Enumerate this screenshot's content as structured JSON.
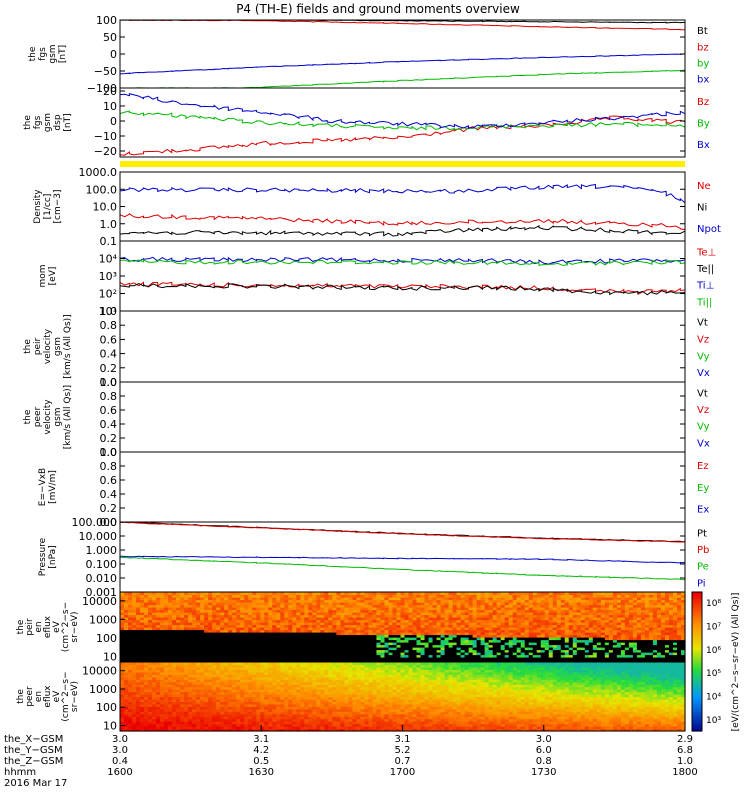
{
  "title": "P4 (TH-E) fields and ground moments overview",
  "date_label": "2016 Mar 17",
  "panels": [
    {
      "id": "fgs_gsm",
      "ylabel": [
        "the",
        "fgs",
        "gsm",
        "[nT]"
      ],
      "ticks": [
        "100",
        "50",
        "0",
        "−50",
        "−100"
      ],
      "tick_values": [
        100,
        50,
        0,
        -50,
        -100
      ],
      "ylim": [
        -100,
        100
      ],
      "legend": [
        {
          "text": "Bt",
          "color": "#000000"
        },
        {
          "text": "bz",
          "color": "#dd0000"
        },
        {
          "text": "by",
          "color": "#00bb00"
        },
        {
          "text": "bx",
          "color": "#0000cc"
        }
      ],
      "series": [
        {
          "name": "Bt",
          "color": "#000000",
          "x": [
            1600,
            1630,
            1700,
            1730,
            1800
          ],
          "y": [
            102,
            100,
            98,
            95,
            92
          ]
        },
        {
          "name": "bz",
          "color": "#dd0000",
          "x": [
            1600,
            1630,
            1700,
            1730,
            1800
          ],
          "y": [
            100,
            98,
            90,
            80,
            72
          ]
        },
        {
          "name": "by",
          "color": "#00bb00",
          "x": [
            1600,
            1630,
            1700,
            1730,
            1800
          ],
          "y": [
            -112,
            -98,
            -78,
            -60,
            -48
          ]
        },
        {
          "name": "bx",
          "color": "#0000cc",
          "x": [
            1600,
            1630,
            1700,
            1730,
            1800
          ],
          "y": [
            -58,
            -38,
            -22,
            -10,
            0
          ]
        }
      ]
    },
    {
      "id": "fgs_gsm_detrended",
      "ylabel": [
        "the",
        "fgs",
        "gsm",
        "dsp",
        "[nT]"
      ],
      "ticks": [
        "20",
        "10",
        "0",
        "−10",
        "−20"
      ],
      "tick_values": [
        20,
        10,
        0,
        -10,
        -20
      ],
      "ylim": [
        -24,
        22
      ],
      "legend": [
        {
          "text": "Bz",
          "color": "#dd0000"
        },
        {
          "text": "By",
          "color": "#00bb00"
        },
        {
          "text": "Bx",
          "color": "#0000cc"
        }
      ],
      "series": [
        {
          "name": "Bz",
          "color": "#dd0000",
          "x": [
            1600,
            1615,
            1630,
            1645,
            1700,
            1715,
            1730,
            1745,
            1800
          ],
          "y": [
            -22,
            -19,
            -15,
            -13,
            -11,
            -5,
            -3,
            2,
            -1
          ]
        },
        {
          "name": "By",
          "color": "#00bb00",
          "x": [
            1600,
            1615,
            1630,
            1645,
            1700,
            1715,
            1730,
            1745,
            1800
          ],
          "y": [
            6,
            3,
            -1,
            -3,
            -5,
            -4,
            -3,
            -2,
            -3
          ]
        },
        {
          "name": "Bx",
          "color": "#0000cc",
          "x": [
            1600,
            1615,
            1630,
            1645,
            1700,
            1715,
            1730,
            1745,
            1800
          ],
          "y": [
            18,
            11,
            6,
            0,
            -2,
            -4,
            -1,
            2,
            6
          ]
        }
      ]
    },
    {
      "id": "density",
      "ylabel": [
        "Density",
        "[1/cc]",
        "[cm−3]"
      ],
      "ticks": [
        "1000.0",
        "100.0",
        "10.0",
        "1.0",
        "0.1"
      ],
      "tick_values": [
        1000,
        100,
        10,
        1,
        0.1
      ],
      "ylim": [
        0.1,
        1000
      ],
      "log": true,
      "legend": [
        {
          "text": "Ne",
          "color": "#dd0000"
        },
        {
          "text": "Ni",
          "color": "#000000"
        },
        {
          "text": "Npot",
          "color": "#0000cc"
        }
      ],
      "series": [
        {
          "name": "Npot",
          "color": "#0000cc",
          "x": [
            1600,
            1630,
            1700,
            1710,
            1730,
            1745,
            1755,
            1800
          ],
          "y": [
            95,
            90,
            80,
            75,
            130,
            150,
            70,
            20
          ]
        },
        {
          "name": "Ne",
          "color": "#dd0000",
          "x": [
            1600,
            1630,
            1700,
            1710,
            1730,
            1745,
            1755,
            1800
          ],
          "y": [
            3.0,
            2.0,
            1.0,
            1.2,
            1.5,
            1.0,
            0.8,
            0.6
          ]
        },
        {
          "name": "Ni",
          "color": "#000000",
          "x": [
            1600,
            1630,
            1700,
            1710,
            1730,
            1745,
            1755,
            1800
          ],
          "y": [
            0.3,
            0.3,
            0.25,
            0.4,
            0.6,
            0.4,
            0.3,
            0.3
          ]
        }
      ]
    },
    {
      "id": "temperature",
      "ylabel": [
        "mom",
        "[eV]"
      ],
      "ticks": [
        "10⁴",
        "10³",
        "10²",
        "10¹"
      ],
      "tick_values": [
        10000,
        1000,
        100,
        10
      ],
      "ylim": [
        10,
        100000
      ],
      "log": true,
      "legend": [
        {
          "text": "Te⊥",
          "color": "#dd0000"
        },
        {
          "text": "Te||",
          "color": "#000000"
        },
        {
          "text": "Ti⊥",
          "color": "#0000cc"
        },
        {
          "text": "Ti||",
          "color": "#00bb00"
        }
      ],
      "series": [
        {
          "name": "Ti⊥",
          "color": "#0000cc",
          "x": [
            1600,
            1630,
            1700,
            1715,
            1730,
            1740,
            1750,
            1800
          ],
          "y": [
            9000,
            8500,
            8000,
            8000,
            6000,
            7000,
            7500,
            7500
          ]
        },
        {
          "name": "Ti||",
          "color": "#00bb00",
          "x": [
            1600,
            1630,
            1700,
            1715,
            1730,
            1740,
            1750,
            1800
          ],
          "y": [
            6500,
            6200,
            6000,
            6000,
            4500,
            5500,
            6000,
            6200
          ]
        },
        {
          "name": "Te⊥",
          "color": "#dd0000",
          "x": [
            1600,
            1630,
            1700,
            1715,
            1730,
            1740,
            1750,
            1800
          ],
          "y": [
            350,
            300,
            250,
            250,
            200,
            150,
            120,
            150
          ]
        },
        {
          "name": "Te||",
          "color": "#000000",
          "x": [
            1600,
            1630,
            1700,
            1715,
            1730,
            1740,
            1750,
            1800
          ],
          "y": [
            300,
            260,
            200,
            220,
            180,
            120,
            100,
            130
          ]
        }
      ]
    },
    {
      "id": "peir_velocity",
      "ylabel": [
        "the",
        "peir",
        "velocity",
        "gsm",
        "[km/s (All Qs)]"
      ],
      "ticks": [
        "1.0",
        "0.8",
        "0.6",
        "0.4",
        "0.2",
        "0.0"
      ],
      "tick_values": [
        1,
        0.8,
        0.6,
        0.4,
        0.2,
        0
      ],
      "ylim": [
        0,
        1
      ],
      "legend": [
        {
          "text": "Vt",
          "color": "#000000"
        },
        {
          "text": "Vz",
          "color": "#dd0000"
        },
        {
          "text": "Vy",
          "color": "#00bb00"
        },
        {
          "text": "Vx",
          "color": "#0000cc"
        }
      ],
      "series": []
    },
    {
      "id": "peer_velocity",
      "ylabel": [
        "the",
        "peer",
        "velocity",
        "gsm",
        "[km/s (All Qs)]"
      ],
      "ticks": [
        "1.0",
        "0.8",
        "0.6",
        "0.4",
        "0.2",
        "0.0"
      ],
      "tick_values": [
        1,
        0.8,
        0.6,
        0.4,
        0.2,
        0
      ],
      "ylim": [
        0,
        1
      ],
      "legend": [
        {
          "text": "Vt",
          "color": "#000000"
        },
        {
          "text": "Vz",
          "color": "#dd0000"
        },
        {
          "text": "Vy",
          "color": "#00bb00"
        },
        {
          "text": "Vx",
          "color": "#0000cc"
        }
      ],
      "series": []
    },
    {
      "id": "efield",
      "ylabel": [
        "E=−VxB",
        "[mV/m]"
      ],
      "ticks": [
        "1.0",
        "0.8",
        "0.6",
        "0.4",
        "0.2",
        "0.0"
      ],
      "tick_values": [
        1,
        0.8,
        0.6,
        0.4,
        0.2,
        0
      ],
      "ylim": [
        0,
        1
      ],
      "legend": [
        {
          "text": "Ez",
          "color": "#dd0000"
        },
        {
          "text": "Ey",
          "color": "#00bb00"
        },
        {
          "text": "Ex",
          "color": "#0000cc"
        }
      ],
      "series": []
    },
    {
      "id": "pressure",
      "ylabel": [
        "Pressure",
        "[nPa]"
      ],
      "ticks": [
        "100.000",
        "10.000",
        "1.000",
        "0.100",
        "0.010",
        "0.001"
      ],
      "tick_values": [
        100,
        10,
        1,
        0.1,
        0.01,
        0.001
      ],
      "ylim": [
        0.001,
        100
      ],
      "log": true,
      "legend": [
        {
          "text": "Pt",
          "color": "#000000"
        },
        {
          "text": "Pb",
          "color": "#dd0000"
        },
        {
          "text": "Pe",
          "color": "#00bb00"
        },
        {
          "text": "Pi",
          "color": "#0000cc"
        }
      ],
      "series": [
        {
          "name": "Pt",
          "color": "#000000",
          "x": [
            1600,
            1630,
            1700,
            1730,
            1800
          ],
          "y": [
            100,
            40,
            15,
            7,
            4
          ]
        },
        {
          "name": "Pb",
          "color": "#dd0000",
          "x": [
            1600,
            1630,
            1700,
            1730,
            1800
          ],
          "y": [
            95,
            38,
            14,
            6.5,
            3.8
          ]
        },
        {
          "name": "Pi",
          "color": "#0000cc",
          "x": [
            1600,
            1630,
            1700,
            1730,
            1800
          ],
          "y": [
            0.35,
            0.3,
            0.25,
            0.22,
            0.12
          ]
        },
        {
          "name": "Pe",
          "color": "#00bb00",
          "x": [
            1600,
            1630,
            1700,
            1730,
            1800
          ],
          "y": [
            0.3,
            0.12,
            0.04,
            0.015,
            0.008
          ]
        }
      ]
    }
  ],
  "spectrograms": [
    {
      "id": "peir_eflux",
      "ylabel": [
        "the",
        "peir",
        "en",
        "eflux",
        "eV",
        "(cm^2−s−",
        "sr−eV)"
      ],
      "ticks": [
        "10000",
        "1000",
        "100",
        "10"
      ],
      "tick_values": [
        10000,
        1000,
        100,
        10
      ],
      "ylim": [
        5,
        30000
      ]
    },
    {
      "id": "peer_eflux",
      "ylabel": [
        "the",
        "peer",
        "en",
        "eflux",
        "eV",
        "(cm^2−s−",
        "sr−eV)"
      ],
      "ticks": [
        "10000",
        "1000",
        "100",
        "10"
      ],
      "tick_values": [
        10000,
        1000,
        100,
        10
      ],
      "ylim": [
        5,
        30000
      ]
    }
  ],
  "colorbar": {
    "label": "[eV/(cm^2−s−sr−eV) (All Qs)]",
    "ticks": [
      "10⁸",
      "10⁷",
      "10⁶",
      "10⁵",
      "10⁴",
      "10³"
    ]
  },
  "axis": {
    "row_labels": [
      "the_X−GSM",
      "the_Y−GSM",
      "the_Z−GSM",
      "hhmm"
    ],
    "columns": [
      {
        "values": [
          "3.0",
          "3.0",
          "0.4",
          "1600"
        ]
      },
      {
        "values": [
          "3.1",
          "4.2",
          "0.5",
          "1630"
        ]
      },
      {
        "values": [
          "3.1",
          "5.2",
          "0.7",
          "1700"
        ]
      },
      {
        "values": [
          "3.0",
          "6.0",
          "0.8",
          "1730"
        ]
      },
      {
        "values": [
          "2.9",
          "6.8",
          "1.0",
          "1800"
        ]
      }
    ]
  },
  "chart_data": {
    "type": "line",
    "title": "P4 (TH-E) fields and ground moments overview",
    "x_label": "hhmm",
    "x_ticks": [
      "1600",
      "1630",
      "1700",
      "1730",
      "1800"
    ],
    "time_range": [
      "1600",
      "1800"
    ]
  }
}
